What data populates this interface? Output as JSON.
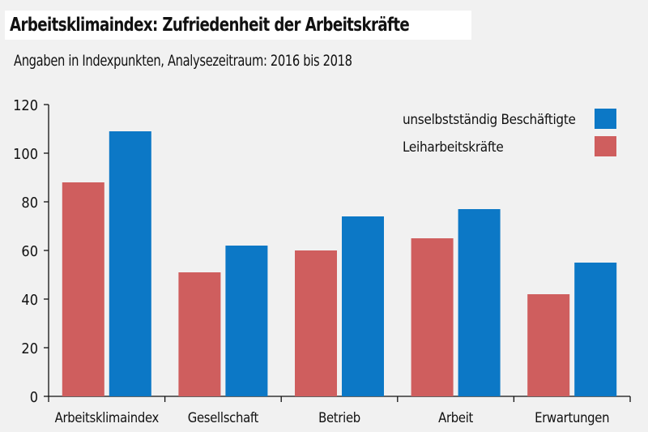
{
  "header": {
    "title": "Arbeitsklimaindex: Zufriedenheit der Arbeitskräfte",
    "subtitle": "Angaben in Indexpunkten, Analysezeitraum: 2016 bis 2018"
  },
  "chart_data": {
    "type": "bar",
    "title": "Arbeitsklimaindex: Zufriedenheit der Arbeitskräfte",
    "subtitle": "Angaben in Indexpunkten, Analysezeitraum: 2016 bis 2018",
    "xlabel": "",
    "ylabel": "",
    "ylim": [
      0,
      120
    ],
    "yticks": [
      0,
      20,
      40,
      60,
      80,
      100,
      120
    ],
    "grid": false,
    "legend_position": "top-right",
    "categories": [
      "Arbeitsklimaindex",
      "Gesellschaft",
      "Betrieb",
      "Arbeit",
      "Erwartungen"
    ],
    "series": [
      {
        "name": "Leiharbeitskräfte",
        "color": "#cf5e5e",
        "values": [
          88,
          51,
          60,
          65,
          42
        ]
      },
      {
        "name": "unselbstständig Beschäftigte",
        "color": "#0c78c6",
        "values": [
          109,
          62,
          74,
          77,
          55
        ]
      }
    ]
  }
}
